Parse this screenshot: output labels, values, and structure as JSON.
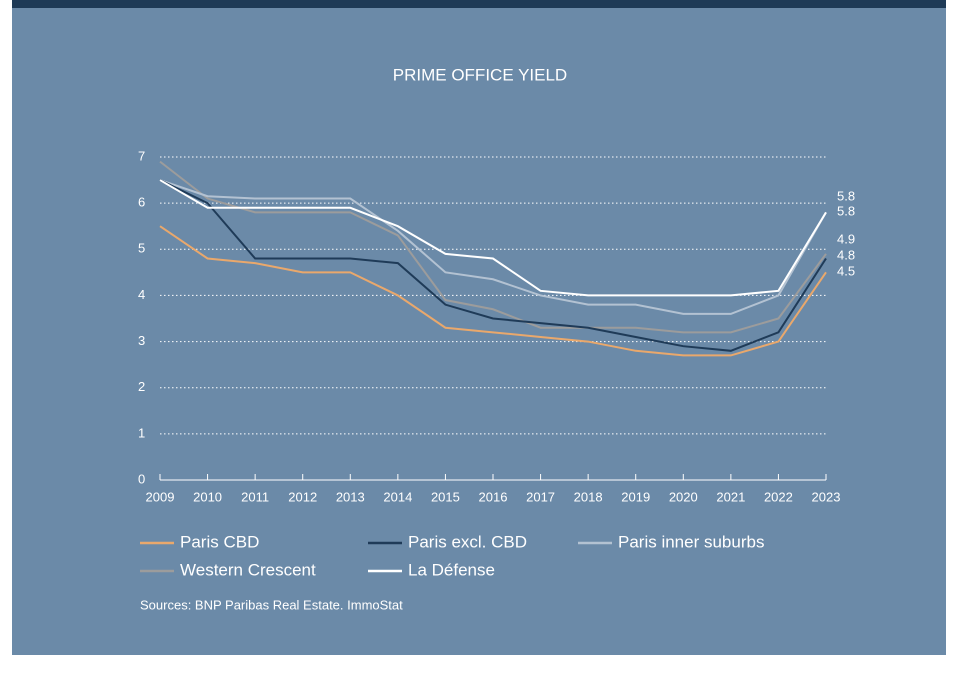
{
  "chart_data": {
    "type": "line",
    "title": "PRIME OFFICE YIELD",
    "categories": [
      "2009",
      "2010",
      "2011",
      "2012",
      "2013",
      "2014",
      "2015",
      "2016",
      "2017",
      "2018",
      "2019",
      "2020",
      "2021",
      "2022",
      "2023"
    ],
    "series": [
      {
        "name": "Paris CBD",
        "color": "#e9a86c",
        "values": [
          5.5,
          4.8,
          4.7,
          4.5,
          4.5,
          4.0,
          3.3,
          3.2,
          3.1,
          3.0,
          2.8,
          2.7,
          2.7,
          3.0,
          4.5
        ]
      },
      {
        "name": "Paris excl. CBD",
        "color": "#1f3b58",
        "values": [
          6.5,
          6.0,
          4.8,
          4.8,
          4.8,
          4.7,
          3.8,
          3.5,
          3.4,
          3.3,
          3.1,
          2.9,
          2.8,
          3.2,
          4.8
        ]
      },
      {
        "name": "Paris inner suburbs",
        "color": "#b3c2d2",
        "values": [
          6.5,
          6.15,
          6.1,
          6.1,
          6.1,
          5.4,
          4.5,
          4.35,
          4.0,
          3.8,
          3.8,
          3.6,
          3.6,
          4.0,
          5.8
        ]
      },
      {
        "name": "Western Crescent",
        "color": "#9c9c9c",
        "values": [
          6.9,
          6.1,
          5.8,
          5.8,
          5.8,
          5.3,
          3.9,
          3.7,
          3.3,
          3.3,
          3.3,
          3.2,
          3.2,
          3.5,
          4.9
        ]
      },
      {
        "name": "La Défense",
        "color": "#ffffff",
        "values": [
          6.5,
          5.9,
          5.9,
          5.9,
          5.9,
          5.5,
          4.9,
          4.8,
          4.1,
          4.0,
          4.0,
          4.0,
          4.0,
          4.1,
          5.8
        ]
      }
    ],
    "ylim": [
      0,
      7
    ],
    "yticks": [
      0,
      1,
      2,
      3,
      4,
      5,
      6,
      7
    ],
    "grid": true,
    "source": "Sources: BNP Paribas Real Estate. ImmoStat"
  }
}
